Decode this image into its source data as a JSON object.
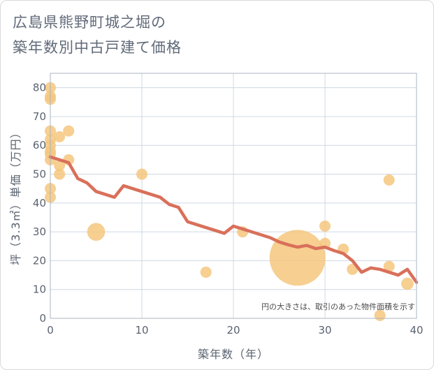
{
  "chart_data": {
    "type": "scatter",
    "title_line1": "広島県熊野町城之堀の",
    "title_line2": "築年数別中古戸建て価格",
    "xlabel": "築年数（年）",
    "ylabel": "坪（3.3㎡）単価（万円）",
    "xlim": [
      0,
      40
    ],
    "ylim": [
      0,
      85
    ],
    "x_ticks": [
      0,
      10,
      20,
      30,
      40
    ],
    "y_ticks": [
      0,
      10,
      20,
      30,
      40,
      50,
      60,
      70,
      80
    ],
    "grid": true,
    "note": "円の大きさは、取引のあった物件面積を示す",
    "colors": {
      "bubble": "#f5c77e",
      "line": "#d9705a",
      "grid": "#cfd8e3",
      "plot_border": "#aab4c0"
    },
    "points": [
      {
        "x": 0,
        "y": 80,
        "size": 1
      },
      {
        "x": 0,
        "y": 77,
        "size": 1
      },
      {
        "x": 0,
        "y": 76,
        "size": 1
      },
      {
        "x": 0,
        "y": 65,
        "size": 1
      },
      {
        "x": 0,
        "y": 62,
        "size": 1
      },
      {
        "x": 0,
        "y": 60,
        "size": 1
      },
      {
        "x": 0,
        "y": 58,
        "size": 1
      },
      {
        "x": 0,
        "y": 57,
        "size": 1
      },
      {
        "x": 0,
        "y": 55,
        "size": 1
      },
      {
        "x": 0,
        "y": 45,
        "size": 1
      },
      {
        "x": 0,
        "y": 42,
        "size": 1
      },
      {
        "x": 1,
        "y": 63,
        "size": 1
      },
      {
        "x": 1,
        "y": 53,
        "size": 1
      },
      {
        "x": 1,
        "y": 50,
        "size": 1
      },
      {
        "x": 2,
        "y": 65,
        "size": 1
      },
      {
        "x": 2,
        "y": 55,
        "size": 1
      },
      {
        "x": 5,
        "y": 30,
        "size": 1.6
      },
      {
        "x": 10,
        "y": 50,
        "size": 1
      },
      {
        "x": 17,
        "y": 16,
        "size": 1
      },
      {
        "x": 21,
        "y": 30,
        "size": 1
      },
      {
        "x": 27,
        "y": 21,
        "size": 5.0
      },
      {
        "x": 30,
        "y": 32,
        "size": 1
      },
      {
        "x": 30,
        "y": 26,
        "size": 1
      },
      {
        "x": 32,
        "y": 24,
        "size": 1
      },
      {
        "x": 33,
        "y": 17,
        "size": 1
      },
      {
        "x": 36,
        "y": 1,
        "size": 1
      },
      {
        "x": 37,
        "y": 48,
        "size": 1
      },
      {
        "x": 37,
        "y": 18,
        "size": 1
      },
      {
        "x": 39,
        "y": 12,
        "size": 1.1
      }
    ],
    "trend": {
      "x": [
        0,
        1,
        2,
        3,
        4,
        5,
        6,
        7,
        8,
        9,
        10,
        11,
        12,
        13,
        14,
        15,
        16,
        17,
        18,
        19,
        20,
        21,
        22,
        23,
        24,
        25,
        26,
        27,
        28,
        29,
        30,
        31,
        32,
        33,
        34,
        35,
        36,
        37,
        38,
        39,
        40
      ],
      "y": [
        56,
        55,
        54,
        48.5,
        47,
        44,
        43,
        42,
        46,
        45,
        44,
        43,
        42,
        39.5,
        38.5,
        33.5,
        32.5,
        31.5,
        30.5,
        29.5,
        32,
        31,
        30,
        29,
        28,
        26.5,
        25.5,
        24.7,
        25.3,
        24.2,
        24.7,
        23.5,
        22.5,
        20,
        16,
        17.5,
        17,
        16,
        15,
        17,
        12.5
      ]
    }
  }
}
